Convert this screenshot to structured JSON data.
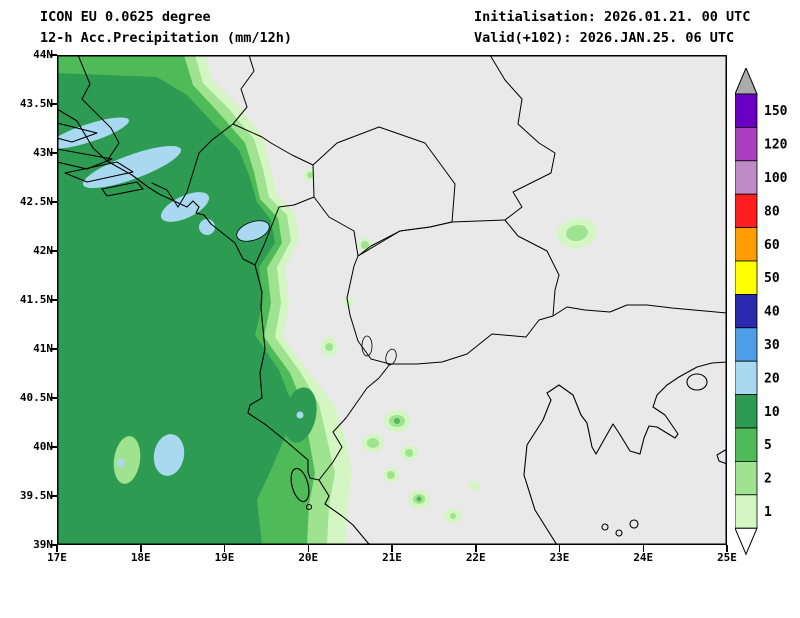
{
  "header": {
    "model_line": "ICON EU 0.0625 degree",
    "product_line": "12-h Acc.Precipitation (mm/12h)",
    "init_line": "Initialisation: 2026.01.21. 00 UTC",
    "valid_line": "Valid(+102): 2026.JAN.25. 06 UTC"
  },
  "map": {
    "lat_labels": [
      "44N",
      "43.5N",
      "43N",
      "42.5N",
      "42N",
      "41.5N",
      "41N",
      "40.5N",
      "40N",
      "39.5N",
      "39N"
    ],
    "lon_labels": [
      "17E",
      "18E",
      "19E",
      "20E",
      "21E",
      "22E",
      "23E",
      "24E",
      "25E"
    ]
  },
  "legend": {
    "unit": "mm/12h",
    "values": [
      150,
      120,
      100,
      80,
      60,
      50,
      40,
      30,
      20,
      10,
      5,
      2,
      1
    ],
    "color_keys": [
      "p150",
      "p120",
      "p100",
      "p80",
      "p60",
      "p50",
      "p40",
      "p30",
      "p20",
      "p10",
      "p5",
      "p2",
      "p1"
    ],
    "above_key": "pabove",
    "below_key": "pbelow"
  },
  "palette": {
    "p1": "#D4F6C2",
    "p2": "#9FE28F",
    "p5": "#4FBB58",
    "p10": "#2D9B52",
    "p20": "#A9D9F1",
    "p30": "#4E9FE8",
    "p40": "#2A2AB0",
    "p50": "#FFFF00",
    "p60": "#FF9D00",
    "p80": "#FF1E1E",
    "p100": "#BE8AC6",
    "p120": "#A93FBF",
    "p150": "#6A00C4",
    "pabove": "#ABABAB",
    "pbelow": "#FFFFFF",
    "land": "#E9E9E9",
    "line": "#000000"
  }
}
